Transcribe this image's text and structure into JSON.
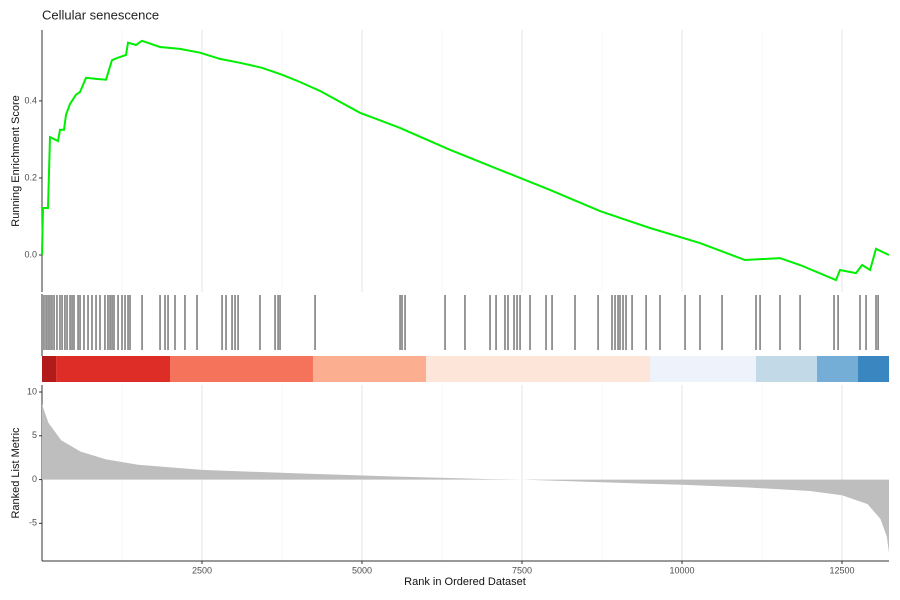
{
  "chart_data": [
    {
      "type": "line",
      "title": "Cellular senescence",
      "ylabel": "Running Enrichment Score",
      "color": "#00ee00",
      "x": [
        0,
        16,
        94,
        125,
        250,
        281,
        344,
        375,
        438,
        531,
        594,
        688,
        844,
        1000,
        1094,
        1188,
        1313,
        1344,
        1469,
        1563,
        1844,
        2156,
        2469,
        2781,
        3094,
        3438,
        3750,
        4031,
        4344,
        4969,
        5594,
        6375,
        7156,
        7938,
        8719,
        9500,
        10281,
        10984,
        11531,
        11844,
        12406,
        12469,
        12719,
        12813,
        12938,
        13031,
        13234
      ],
      "values": [
        0,
        0.122,
        0.122,
        0.306,
        0.296,
        0.325,
        0.325,
        0.364,
        0.392,
        0.416,
        0.423,
        0.46,
        0.457,
        0.455,
        0.506,
        0.512,
        0.519,
        0.551,
        0.545,
        0.556,
        0.54,
        0.535,
        0.525,
        0.509,
        0.499,
        0.486,
        0.468,
        0.449,
        0.426,
        0.369,
        0.33,
        0.273,
        0.221,
        0.169,
        0.114,
        0.07,
        0.031,
        -0.013,
        -0.008,
        -0.026,
        -0.065,
        -0.039,
        -0.047,
        -0.026,
        -0.039,
        0.016,
        0
      ],
      "xlim": [
        0,
        13234
      ],
      "ylim": [
        -0.096,
        0.584
      ],
      "yticks": [
        {
          "value": 0,
          "label": "0.0"
        },
        0.2,
        0.4
      ],
      "xticks": [
        2500,
        5000,
        7500,
        10000,
        12500
      ],
      "x_minor_ticks": [
        1250,
        3750,
        6250,
        8750,
        11250
      ],
      "grid": true
    },
    {
      "type": "rug",
      "color": "#000000",
      "xlim": [
        0,
        13234
      ],
      "x": [
        31,
        63,
        94,
        125,
        156,
        188,
        234,
        281,
        313,
        359,
        391,
        438,
        469,
        500,
        563,
        594,
        656,
        719,
        781,
        844,
        906,
        984,
        1031,
        1063,
        1094,
        1125,
        1188,
        1250,
        1297,
        1344,
        1375,
        1563,
        1844,
        1922,
        1969,
        2078,
        2234,
        2422,
        2813,
        2875,
        2969,
        3016,
        3063,
        3406,
        3641,
        3688,
        3719,
        4266,
        5594,
        5625,
        5672,
        6297,
        6609,
        7000,
        7094,
        7234,
        7281,
        7375,
        7422,
        7469,
        7625,
        7875,
        7969,
        8328,
        8688,
        8906,
        8953,
        9000,
        9031,
        9078,
        9125,
        9219,
        9438,
        9656,
        10047,
        10281,
        10625,
        11156,
        11219,
        11531,
        11844,
        12375,
        12438,
        12781,
        12875,
        13031,
        13063
      ],
      "band": {
        "breaks": [
          0,
          220,
          2000,
          4234,
          6000,
          9500,
          11156,
          12109,
          12750,
          13234
        ],
        "colors": [
          "#b31b1b",
          "#de2d26",
          "#f4735a",
          "#fcae91",
          "#fee5d9",
          "#eef3fb",
          "#c2d9e8",
          "#74aed6",
          "#3a86c1"
        ]
      }
    },
    {
      "type": "area",
      "xlabel": "Rank in Ordered Dataset",
      "ylabel": "Ranked List Metric",
      "color": "#bebebe",
      "x": [
        0,
        100,
        300,
        600,
        1000,
        1500,
        2500,
        4000,
        5500,
        7000,
        7500,
        8500,
        10000,
        11000,
        12000,
        12500,
        12900,
        13100,
        13200,
        13234
      ],
      "values": [
        8.6,
        6.5,
        4.5,
        3.2,
        2.3,
        1.7,
        1.1,
        0.7,
        0.35,
        0.05,
        0,
        -0.25,
        -0.6,
        -0.9,
        -1.3,
        -1.8,
        -2.8,
        -4.5,
        -6.5,
        -8.4
      ],
      "xlim": [
        0,
        13234
      ],
      "ylim": [
        -9.3,
        10.8
      ],
      "yticks": [
        -5,
        0,
        5,
        10
      ],
      "xticks": [
        2500,
        5000,
        7500,
        10000,
        12500
      ],
      "x_minor_ticks": [
        1250,
        3750,
        6250,
        8750,
        11250
      ],
      "grid": true
    }
  ]
}
